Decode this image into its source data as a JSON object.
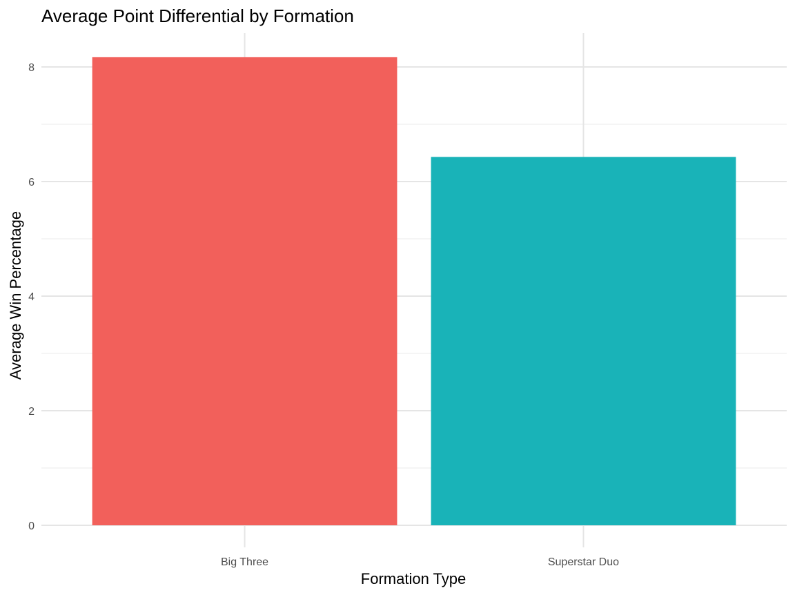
{
  "chart_data": {
    "type": "bar",
    "title": "Average Point Differential by Formation",
    "xlabel": "Formation Type",
    "ylabel": "Average Win Percentage",
    "categories": [
      "Big Three",
      "Superstar Duo"
    ],
    "values": [
      8.17,
      6.43
    ],
    "colors": [
      "#F2605B",
      "#19B3B8"
    ],
    "ylim": [
      0,
      8.5
    ],
    "yticks": [
      0,
      2,
      4,
      6,
      8
    ],
    "grid": true,
    "legend": "none"
  }
}
